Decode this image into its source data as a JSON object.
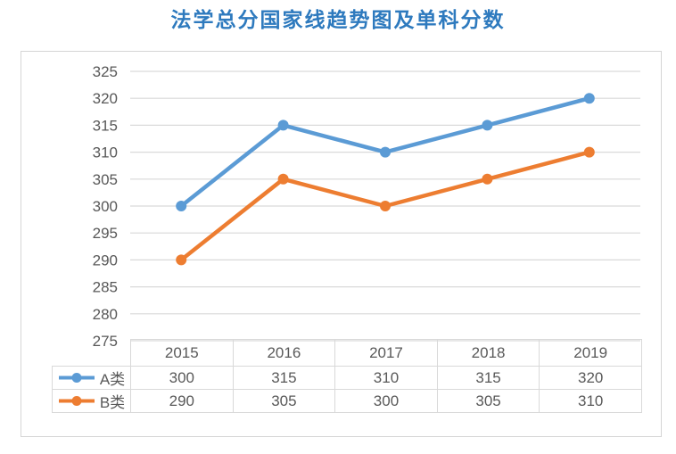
{
  "page": {
    "title": "法学总分国家线趋势图及单科分数"
  },
  "chart_data": {
    "type": "line",
    "title": "法学总分国家线趋势图及单科分数",
    "categories": [
      "2015",
      "2016",
      "2017",
      "2018",
      "2019"
    ],
    "series": [
      {
        "name": "A类",
        "values": [
          300,
          315,
          310,
          315,
          320
        ],
        "color": "#5b9bd5"
      },
      {
        "name": "B类",
        "values": [
          290,
          305,
          300,
          305,
          310
        ],
        "color": "#ed7d31"
      }
    ],
    "xlabel": "",
    "ylabel": "",
    "ylim": [
      275,
      325
    ],
    "ytick_step": 5,
    "grid": true,
    "legend_position": "data-table-left",
    "data_table": true
  },
  "colors": {
    "title_text": "#2e7abe",
    "gridline": "#d9d9d9",
    "axis_text": "#595959",
    "table_border": "#d9d9d9",
    "panel_border": "#d5d5d5"
  }
}
